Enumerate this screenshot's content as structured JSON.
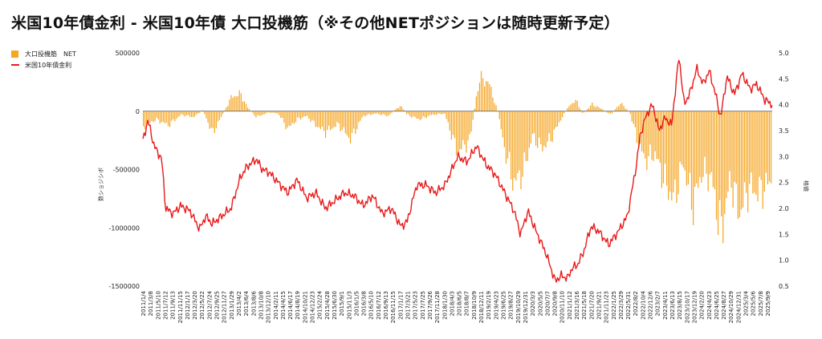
{
  "chart_data": {
    "type": "bar+line",
    "title": "米国10年債金利 - 米国10年債 大口投機筋（※その他NETポジションは随時更新予定）",
    "y_left": {
      "label": "数ショジシボ",
      "range": [
        -1500000,
        500000
      ],
      "ticks": [
        500000,
        0,
        -500000,
        -1000000,
        -1500000
      ],
      "tick_labels": [
        "500000",
        "0",
        "-500000",
        "-1000000",
        "-1500000"
      ]
    },
    "y_right": {
      "label": "格値",
      "range": [
        0.5,
        5.0
      ],
      "ticks": [
        5.0,
        4.5,
        4.0,
        3.5,
        3.0,
        2.5,
        2.0,
        1.5,
        1.0,
        0.5
      ],
      "tick_labels": [
        "5.0",
        "4.5",
        "4.0",
        "3.5",
        "3.0",
        "2.5",
        "2.0",
        "1.5",
        "1.0",
        "0.5"
      ]
    },
    "x_tick_labels": [
      "2011/1/4",
      "2011/3/8",
      "2011/5/10",
      "2011/7/12",
      "2011/9/13",
      "2011/11/15",
      "2012/1/17",
      "2012/3/20",
      "2012/5/22",
      "2012/7/24",
      "2012/9/25",
      "2012/11/27",
      "2013/1/29",
      "2013/4/2",
      "2013/6/4",
      "2013/8/6",
      "2013/10/8",
      "2013/12/10",
      "2014/2/11",
      "2014/4/15",
      "2014/6/17",
      "2014/8/19",
      "2014/10/21",
      "2014/12/23",
      "2015/2/24",
      "2015/4/28",
      "2015/6/30",
      "2015/9/1",
      "2015/11/3",
      "2016/1/5",
      "2016/3/8",
      "2016/5/10",
      "2016/7/12",
      "2016/9/13",
      "2016/11/15",
      "2017/1/17",
      "2017/3/21",
      "2017/5/23",
      "2017/7/25",
      "2017/9/26",
      "2017/11/28",
      "2018/1/30",
      "2018/4/3",
      "2018/6/5",
      "2018/8/7",
      "2018/10/9",
      "2018/12/11",
      "2019/2/19",
      "2019/4/23",
      "2019/6/25",
      "2019/8/27",
      "2019/10/29",
      "2019/12/31",
      "2020/3/3",
      "2020/5/5",
      "2020/7/7",
      "2020/9/8",
      "2020/11/10",
      "2021/1/12",
      "2021/3/16",
      "2021/5/18",
      "2021/7/20",
      "2021/9/21",
      "2021/11/23",
      "2022/1/25",
      "2022/3/29",
      "2022/5/31",
      "2022/8/2",
      "2022/10/4",
      "2022/12/6",
      "2023/2/7",
      "2023/4/11",
      "2023/6/13",
      "2023/8/15",
      "2023/10/17",
      "2023/12/19",
      "2024/2/20",
      "2024/4/23",
      "2024/6/25",
      "2024/8/27",
      "2024/10/29",
      "2024/12/31",
      "2025/3/4",
      "2025/5/6",
      "2025/7/8",
      "2025/9/9"
    ],
    "legend": [
      {
        "name": "大口投機筋　NET",
        "color": "#f5a623",
        "type": "bar"
      },
      {
        "name": "米国10年債金利",
        "color": "#e81a1a",
        "type": "line"
      }
    ],
    "series_anchors": {
      "net_position": {
        "axis": "left",
        "t": [
          0.0,
          0.02,
          0.04,
          0.06,
          0.08,
          0.095,
          0.11,
          0.125,
          0.14,
          0.155,
          0.165,
          0.18,
          0.2,
          0.215,
          0.23,
          0.245,
          0.26,
          0.275,
          0.29,
          0.31,
          0.33,
          0.35,
          0.37,
          0.39,
          0.41,
          0.42,
          0.44,
          0.46,
          0.48,
          0.5,
          0.52,
          0.535,
          0.55,
          0.565,
          0.575,
          0.59,
          0.605,
          0.62,
          0.635,
          0.65,
          0.665,
          0.68,
          0.69,
          0.7,
          0.715,
          0.73,
          0.745,
          0.76,
          0.775,
          0.79,
          0.8,
          0.815,
          0.83,
          0.845,
          0.86,
          0.875,
          0.89,
          0.905,
          0.92,
          0.935,
          0.95,
          0.965,
          0.98,
          1.0
        ],
        "values": [
          -130000,
          -70000,
          -120000,
          -30000,
          -50000,
          10000,
          -190000,
          -40000,
          120000,
          150000,
          40000,
          -50000,
          -10000,
          -20000,
          -150000,
          -70000,
          -40000,
          -120000,
          -180000,
          -110000,
          -240000,
          -40000,
          -20000,
          -40000,
          50000,
          -30000,
          -70000,
          -30000,
          -20000,
          -350000,
          -250000,
          280000,
          250000,
          -10000,
          -310000,
          -620000,
          -520000,
          -210000,
          -320000,
          -230000,
          -70000,
          60000,
          90000,
          -20000,
          60000,
          20000,
          -30000,
          70000,
          -10000,
          -300000,
          -420000,
          -360000,
          -600000,
          -760000,
          -440000,
          -810000,
          -520000,
          -570000,
          -1050000,
          -580000,
          -870000,
          -650000,
          -700000,
          -600000
        ]
      },
      "yield_10y": {
        "axis": "right",
        "t": [
          0.0,
          0.008,
          0.018,
          0.03,
          0.036,
          0.048,
          0.06,
          0.075,
          0.09,
          0.1,
          0.11,
          0.125,
          0.14,
          0.155,
          0.165,
          0.18,
          0.19,
          0.2,
          0.215,
          0.23,
          0.245,
          0.26,
          0.275,
          0.29,
          0.305,
          0.32,
          0.335,
          0.35,
          0.365,
          0.38,
          0.395,
          0.41,
          0.42,
          0.435,
          0.45,
          0.465,
          0.48,
          0.5,
          0.515,
          0.53,
          0.545,
          0.56,
          0.575,
          0.59,
          0.6,
          0.612,
          0.625,
          0.64,
          0.655,
          0.665,
          0.675,
          0.682,
          0.69,
          0.7,
          0.712,
          0.725,
          0.74,
          0.755,
          0.77,
          0.785,
          0.79,
          0.8,
          0.81,
          0.82,
          0.83,
          0.84,
          0.852,
          0.86,
          0.87,
          0.88,
          0.89,
          0.9,
          0.91,
          0.918,
          0.928,
          0.94,
          0.952,
          0.965,
          0.975,
          0.988,
          1.0
        ],
        "values": [
          3.3,
          3.7,
          3.2,
          2.95,
          2.0,
          1.9,
          2.05,
          1.95,
          1.6,
          1.85,
          1.7,
          1.85,
          2.0,
          2.6,
          2.8,
          2.95,
          2.75,
          2.7,
          2.5,
          2.3,
          2.55,
          2.2,
          2.3,
          2.0,
          2.15,
          2.3,
          2.25,
          2.05,
          2.25,
          1.9,
          2.0,
          1.65,
          1.75,
          2.45,
          2.45,
          2.3,
          2.45,
          3.0,
          2.9,
          3.2,
          2.85,
          2.65,
          2.3,
          1.95,
          1.5,
          1.95,
          1.55,
          1.15,
          0.6,
          0.7,
          0.65,
          0.85,
          0.9,
          1.15,
          1.65,
          1.55,
          1.3,
          1.55,
          1.85,
          2.9,
          3.4,
          3.8,
          4.0,
          3.5,
          3.75,
          3.6,
          4.95,
          4.0,
          4.25,
          4.7,
          4.4,
          4.65,
          4.2,
          3.75,
          4.55,
          4.2,
          4.6,
          4.3,
          4.4,
          4.1,
          4.0
        ]
      }
    }
  }
}
